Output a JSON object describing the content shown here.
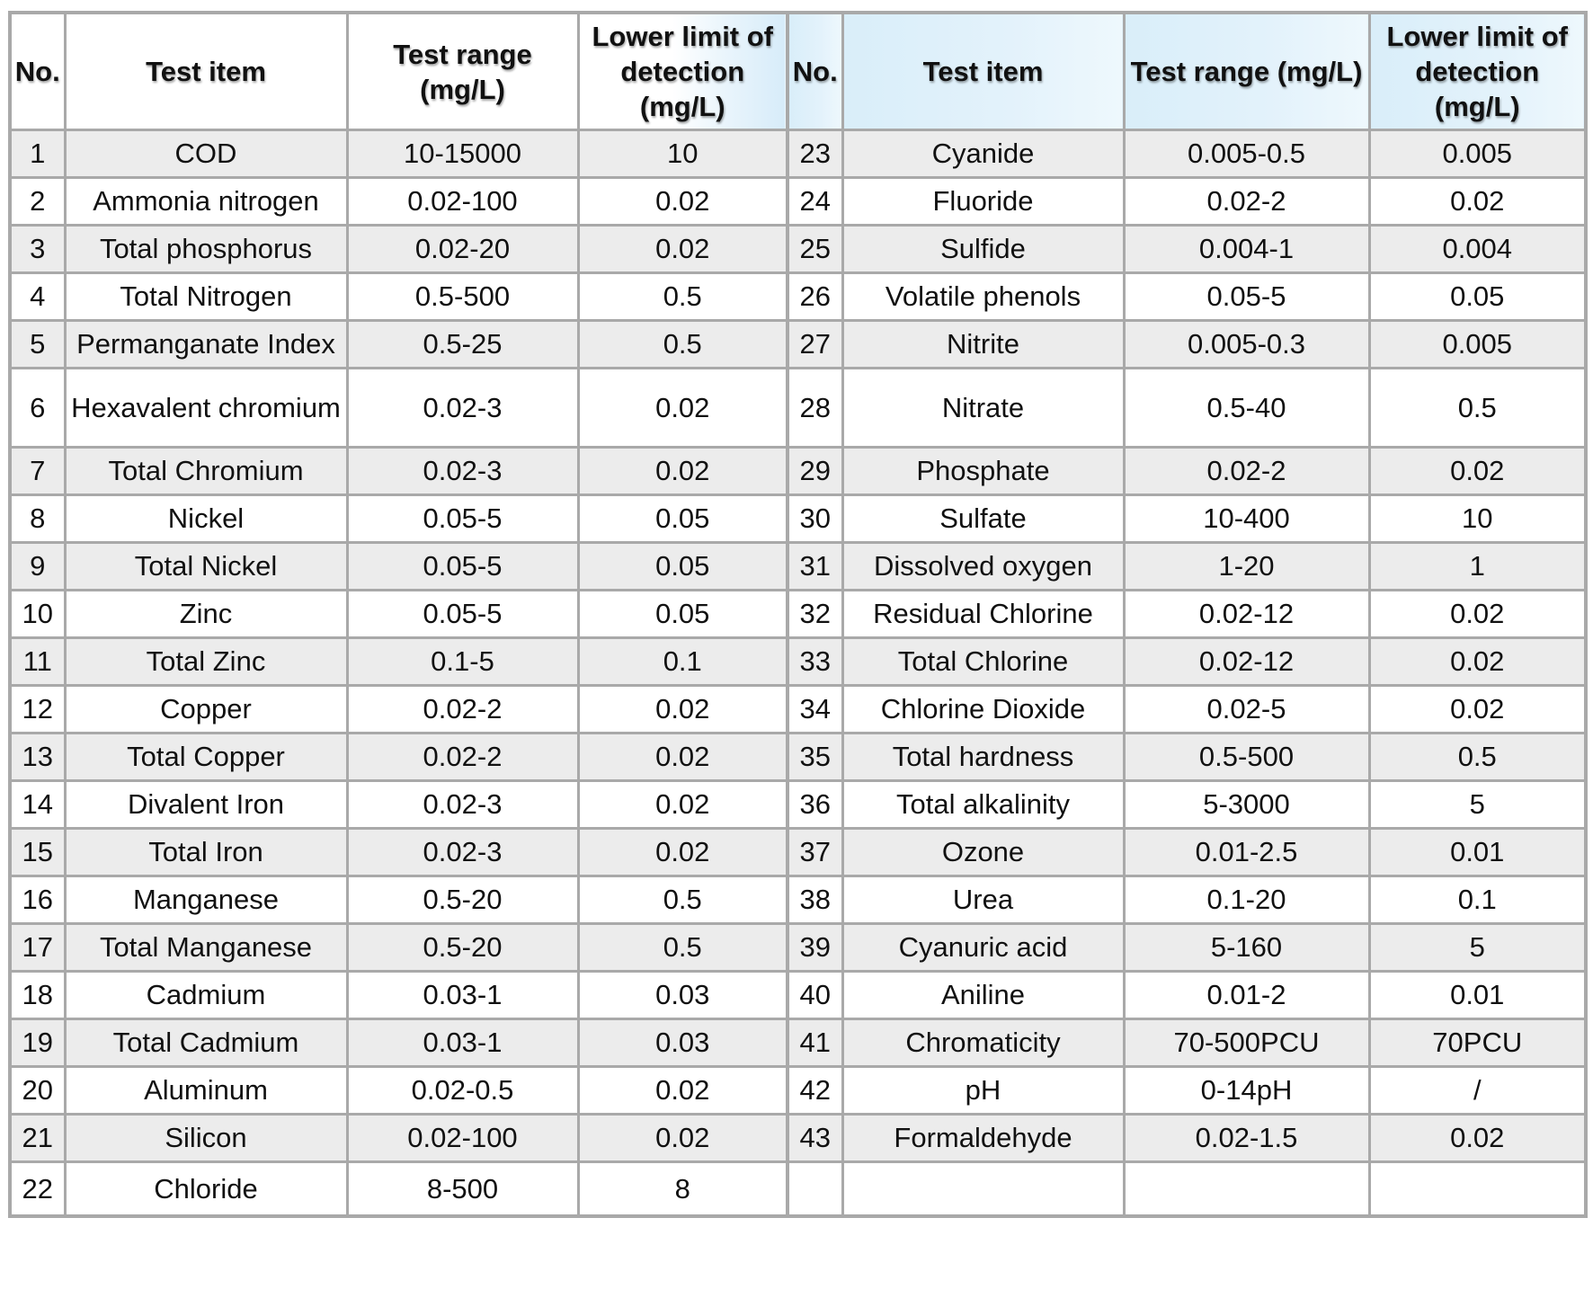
{
  "headers": {
    "no_left": "No.",
    "item_left": "Test item",
    "range_left": "Test range (mg/L)",
    "lod_left": "Lower limit of detection (mg/L)",
    "no_right": "No.",
    "item_right": "Test item",
    "range_right": "Test range (mg/L)",
    "lod_right": "Lower limit of detection (mg/L)"
  },
  "rows": [
    {
      "no1": "1",
      "item1": "COD",
      "range1": "10-15000",
      "lod1": "10",
      "no2": "23",
      "item2": "Cyanide",
      "range2": "0.005-0.5",
      "lod2": "0.005"
    },
    {
      "no1": "2",
      "item1": "Ammonia nitrogen",
      "range1": "0.02-100",
      "lod1": "0.02",
      "no2": "24",
      "item2": "Fluoride",
      "range2": "0.02-2",
      "lod2": "0.02"
    },
    {
      "no1": "3",
      "item1": "Total phosphorus",
      "range1": "0.02-20",
      "lod1": "0.02",
      "no2": "25",
      "item2": "Sulfide",
      "range2": "0.004-1",
      "lod2": "0.004"
    },
    {
      "no1": "4",
      "item1": "Total Nitrogen",
      "range1": "0.5-500",
      "lod1": "0.5",
      "no2": "26",
      "item2": "Volatile phenols",
      "range2": "0.05-5",
      "lod2": "0.05"
    },
    {
      "no1": "5",
      "item1": "Permanganate Index",
      "range1": "0.5-25",
      "lod1": "0.5",
      "no2": "27",
      "item2": "Nitrite",
      "range2": "0.005-0.3",
      "lod2": "0.005"
    },
    {
      "no1": "6",
      "item1": "Hexavalent chromium",
      "range1": "0.02-3",
      "lod1": "0.02",
      "no2": "28",
      "item2": "Nitrate",
      "range2": "0.5-40",
      "lod2": "0.5"
    },
    {
      "no1": "7",
      "item1": "Total Chromium",
      "range1": "0.02-3",
      "lod1": "0.02",
      "no2": "29",
      "item2": "Phosphate",
      "range2": "0.02-2",
      "lod2": "0.02"
    },
    {
      "no1": "8",
      "item1": "Nickel",
      "range1": "0.05-5",
      "lod1": "0.05",
      "no2": "30",
      "item2": "Sulfate",
      "range2": "10-400",
      "lod2": "10"
    },
    {
      "no1": "9",
      "item1": "Total Nickel",
      "range1": "0.05-5",
      "lod1": "0.05",
      "no2": "31",
      "item2": "Dissolved oxygen",
      "range2": "1-20",
      "lod2": "1"
    },
    {
      "no1": "10",
      "item1": "Zinc",
      "range1": "0.05-5",
      "lod1": "0.05",
      "no2": "32",
      "item2": "Residual Chlorine",
      "range2": "0.02-12",
      "lod2": "0.02"
    },
    {
      "no1": "11",
      "item1": "Total Zinc",
      "range1": "0.1-5",
      "lod1": "0.1",
      "no2": "33",
      "item2": "Total Chlorine",
      "range2": "0.02-12",
      "lod2": "0.02"
    },
    {
      "no1": "12",
      "item1": "Copper",
      "range1": "0.02-2",
      "lod1": "0.02",
      "no2": "34",
      "item2": "Chlorine Dioxide",
      "range2": "0.02-5",
      "lod2": "0.02"
    },
    {
      "no1": "13",
      "item1": "Total Copper",
      "range1": "0.02-2",
      "lod1": "0.02",
      "no2": "35",
      "item2": "Total hardness",
      "range2": "0.5-500",
      "lod2": "0.5"
    },
    {
      "no1": "14",
      "item1": "Divalent Iron",
      "range1": "0.02-3",
      "lod1": "0.02",
      "no2": "36",
      "item2": "Total alkalinity",
      "range2": "5-3000",
      "lod2": "5"
    },
    {
      "no1": "15",
      "item1": "Total Iron",
      "range1": "0.02-3",
      "lod1": "0.02",
      "no2": "37",
      "item2": "Ozone",
      "range2": "0.01-2.5",
      "lod2": "0.01"
    },
    {
      "no1": "16",
      "item1": "Manganese",
      "range1": "0.5-20",
      "lod1": "0.5",
      "no2": "38",
      "item2": "Urea",
      "range2": "0.1-20",
      "lod2": "0.1"
    },
    {
      "no1": "17",
      "item1": "Total Manganese",
      "range1": "0.5-20",
      "lod1": "0.5",
      "no2": "39",
      "item2": "Cyanuric acid",
      "range2": "5-160",
      "lod2": "5"
    },
    {
      "no1": "18",
      "item1": "Cadmium",
      "range1": "0.03-1",
      "lod1": "0.03",
      "no2": "40",
      "item2": "Aniline",
      "range2": "0.01-2",
      "lod2": "0.01"
    },
    {
      "no1": "19",
      "item1": "Total Cadmium",
      "range1": "0.03-1",
      "lod1": "0.03",
      "no2": "41",
      "item2": "Chromaticity",
      "range2": "70-500PCU",
      "lod2": "70PCU"
    },
    {
      "no1": "20",
      "item1": "Aluminum",
      "range1": "0.02-0.5",
      "lod1": "0.02",
      "no2": "42",
      "item2": "pH",
      "range2": "0-14pH",
      "lod2": "/"
    },
    {
      "no1": "21",
      "item1": "Silicon",
      "range1": "0.02-100",
      "lod1": "0.02",
      "no2": "43",
      "item2": "Formaldehyde",
      "range2": "0.02-1.5",
      "lod2": "0.02"
    },
    {
      "no1": "22",
      "item1": "Chloride",
      "range1": "8-500",
      "lod1": "8",
      "no2": "",
      "item2": "",
      "range2": "",
      "lod2": ""
    }
  ]
}
